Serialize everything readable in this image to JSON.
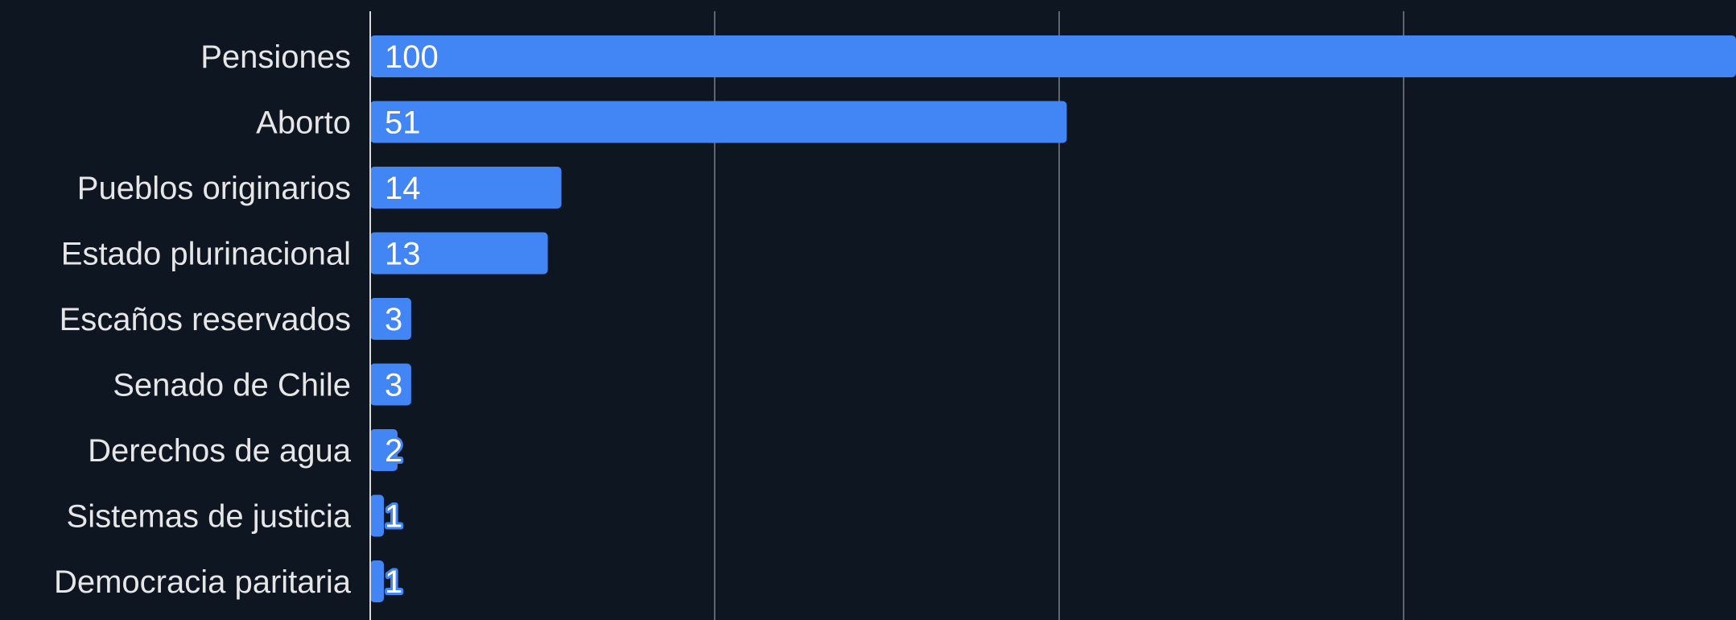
{
  "chart_data": {
    "type": "bar",
    "orientation": "horizontal",
    "categories": [
      "Pensiones",
      "Aborto",
      "Pueblos originarios",
      "Estado plurinacional",
      "Escaños reservados",
      "Senado de Chile",
      "Derechos de agua",
      "Sistemas de justicia",
      "Democracia paritaria"
    ],
    "values": [
      100,
      51,
      14,
      13,
      3,
      3,
      2,
      1,
      1
    ],
    "title": "",
    "xlabel": "",
    "ylabel": "",
    "xlim": [
      0,
      100
    ],
    "grid": true,
    "legend": "none",
    "colors": {
      "background": "#0e1621",
      "bar": "#4285f4",
      "grid": "#5f6670",
      "axis": "#d9d9d9",
      "category_text": "#e6e6e6",
      "value_text": "#ffffff"
    }
  }
}
